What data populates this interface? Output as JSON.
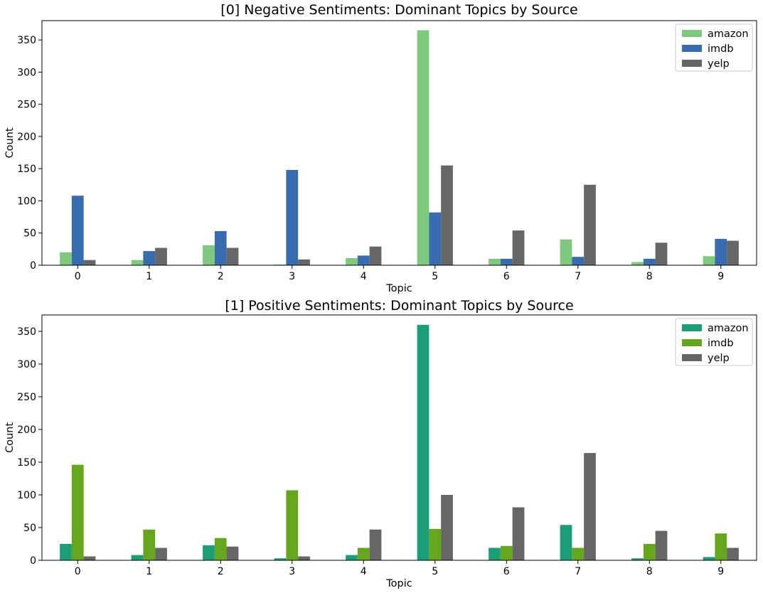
{
  "chart_data": [
    {
      "type": "bar",
      "title": "[0] Negative Sentiments: Dominant Topics by Source",
      "xlabel": "Topic",
      "ylabel": "Count",
      "categories": [
        "0",
        "1",
        "2",
        "3",
        "4",
        "5",
        "6",
        "7",
        "8",
        "9"
      ],
      "ylim": [
        0,
        380
      ],
      "yticks": [
        0,
        50,
        100,
        150,
        200,
        250,
        300,
        350
      ],
      "legend_position": "top-right",
      "series": [
        {
          "name": "amazon",
          "color": "#7fc97f",
          "values": [
            20,
            8,
            31,
            1,
            11,
            365,
            10,
            40,
            5,
            14
          ]
        },
        {
          "name": "imdb",
          "color": "#386cb0",
          "values": [
            108,
            22,
            53,
            148,
            15,
            82,
            10,
            13,
            10,
            41
          ]
        },
        {
          "name": "yelp",
          "color": "#666666",
          "values": [
            8,
            27,
            27,
            9,
            29,
            155,
            54,
            125,
            35,
            38
          ]
        }
      ]
    },
    {
      "type": "bar",
      "title": "[1] Positive Sentiments: Dominant Topics by Source",
      "xlabel": "Topic",
      "ylabel": "Count",
      "categories": [
        "0",
        "1",
        "2",
        "3",
        "4",
        "5",
        "6",
        "7",
        "8",
        "9"
      ],
      "ylim": [
        0,
        375
      ],
      "yticks": [
        0,
        50,
        100,
        150,
        200,
        250,
        300,
        350
      ],
      "legend_position": "top-right",
      "series": [
        {
          "name": "amazon",
          "color": "#1b9e77",
          "values": [
            25,
            8,
            23,
            3,
            8,
            360,
            19,
            54,
            3,
            5
          ]
        },
        {
          "name": "imdb",
          "color": "#66a61e",
          "values": [
            146,
            47,
            34,
            107,
            19,
            48,
            22,
            19,
            25,
            41
          ]
        },
        {
          "name": "yelp",
          "color": "#666666",
          "values": [
            6,
            19,
            21,
            6,
            47,
            100,
            81,
            164,
            45,
            19
          ]
        }
      ]
    }
  ]
}
